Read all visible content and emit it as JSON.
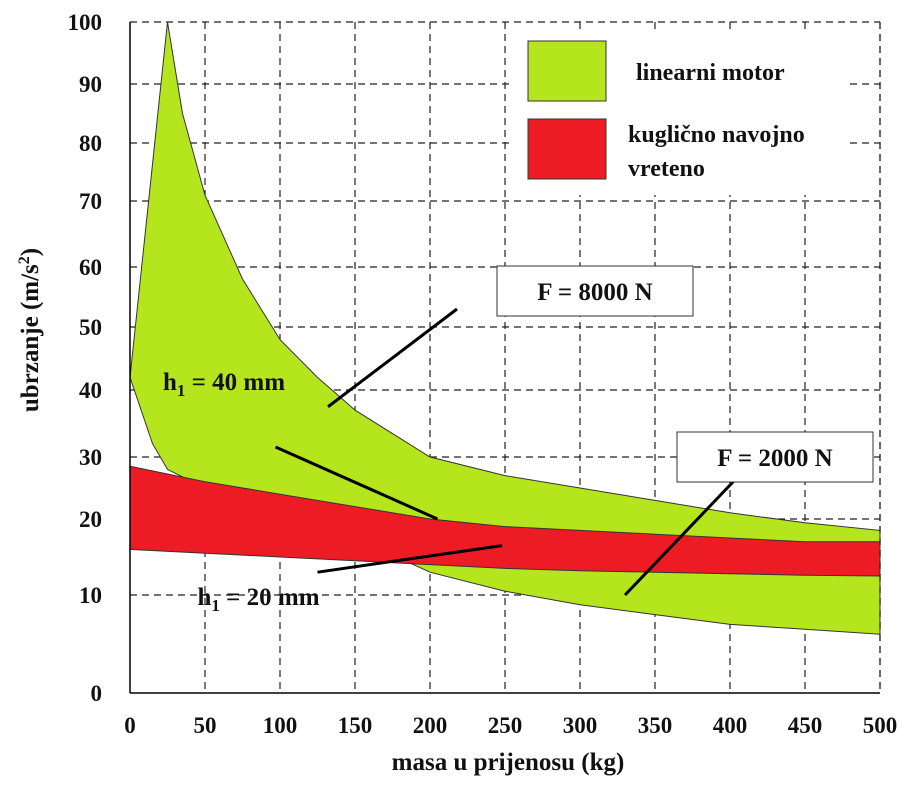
{
  "chart_data": {
    "type": "area",
    "xlabel": "masa u prijenosu (kg)",
    "ylabel": "ubrzanje (m/s",
    "ylabel_sup": "2",
    "ylabel_end": ")",
    "xlim": [
      0,
      500
    ],
    "ylim": [
      0,
      100
    ],
    "x_ticks": [
      "0",
      "50",
      "100",
      "150",
      "200",
      "250",
      "300",
      "350",
      "400",
      "450",
      "500"
    ],
    "y_ticks": [
      {
        "value": 0,
        "label": "0"
      },
      {
        "value": 10,
        "label": "10"
      },
      {
        "value": 20,
        "label": "20"
      },
      {
        "value": 30,
        "label": "30"
      },
      {
        "value": 40,
        "label": "40"
      },
      {
        "value": 50,
        "label": "50"
      },
      {
        "value": 60,
        "label": "60"
      },
      {
        "value": 70,
        "label": "70"
      },
      {
        "value": 80,
        "label": "80"
      },
      {
        "value": 90,
        "label": "90"
      },
      {
        "value": 100,
        "label": "100"
      }
    ],
    "grid": true,
    "legend_position": "top-right",
    "series": [
      {
        "name": "linearni motor",
        "color": "#b5e61d",
        "upper": [
          [
            0,
            42
          ],
          [
            25,
            100
          ],
          [
            35,
            85
          ],
          [
            50,
            71
          ],
          [
            75,
            58
          ],
          [
            100,
            48
          ],
          [
            125,
            42
          ],
          [
            150,
            37
          ],
          [
            200,
            30
          ],
          [
            250,
            27
          ],
          [
            300,
            25
          ],
          [
            350,
            23
          ],
          [
            400,
            21
          ],
          [
            450,
            19.5
          ],
          [
            500,
            18.5
          ]
        ],
        "lower": [
          [
            0,
            42
          ],
          [
            15,
            32
          ],
          [
            25,
            28
          ],
          [
            50,
            25
          ],
          [
            100,
            21
          ],
          [
            150,
            17.5
          ],
          [
            200,
            13
          ],
          [
            250,
            10.5
          ],
          [
            300,
            9
          ],
          [
            350,
            8
          ],
          [
            400,
            7
          ],
          [
            450,
            6.5
          ],
          [
            500,
            6
          ]
        ]
      },
      {
        "name": "kuglično navojno vreteno",
        "color": "#ed1c24",
        "upper": [
          [
            0,
            28.5
          ],
          [
            50,
            26
          ],
          [
            100,
            24
          ],
          [
            150,
            22
          ],
          [
            200,
            20
          ],
          [
            250,
            19
          ],
          [
            300,
            18.5
          ],
          [
            350,
            18
          ],
          [
            400,
            17.5
          ],
          [
            450,
            17
          ],
          [
            500,
            17
          ]
        ],
        "lower": [
          [
            0,
            16
          ],
          [
            50,
            15.5
          ],
          [
            100,
            15
          ],
          [
            150,
            14.5
          ],
          [
            200,
            14
          ],
          [
            250,
            13.5
          ],
          [
            300,
            13.2
          ],
          [
            350,
            13
          ],
          [
            400,
            12.8
          ],
          [
            450,
            12.6
          ],
          [
            500,
            12.5
          ]
        ]
      }
    ],
    "annotations": [
      {
        "text": "F = 8000 N",
        "from": [
          132,
          37.5
        ],
        "to": [
          218,
          53
        ],
        "box": true,
        "anchor": [
          310,
          56
        ]
      },
      {
        "text": "F = 2000 N",
        "from": [
          330,
          10
        ],
        "to": [
          410,
          28
        ],
        "box": true,
        "anchor": [
          430,
          30
        ]
      },
      {
        "text_main": "h",
        "text_sub": "1",
        "text_rest": " = 40 mm",
        "from": [
          97,
          31.5
        ],
        "to": [
          205,
          20
        ],
        "box": false,
        "label_at": [
          22,
          40
        ]
      },
      {
        "text_main": "h",
        "text_sub": "1",
        "text_rest": " = 20 mm",
        "from": [
          125,
          13
        ],
        "to": [
          248,
          16.5
        ],
        "box": false,
        "label_at": [
          45,
          9
        ]
      }
    ]
  }
}
